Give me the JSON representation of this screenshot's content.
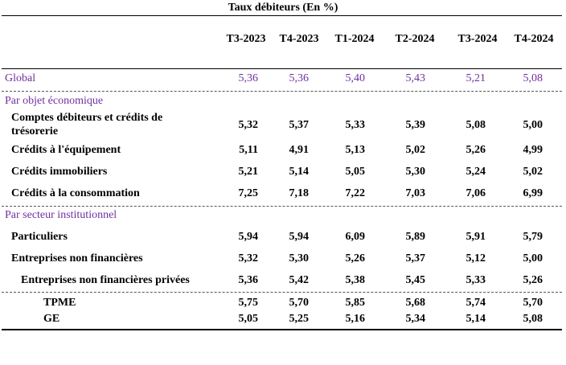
{
  "title": "Taux débiteurs (En %)",
  "columns": [
    "T3-2023",
    "T4-2023",
    "T1-2024",
    "T2-2024",
    "T3-2024",
    "T4-2024"
  ],
  "global": {
    "label": "Global",
    "values": [
      "5,36",
      "5,36",
      "5,40",
      "5,43",
      "5,21",
      "5,08"
    ]
  },
  "section_objet": {
    "label": "Par objet économique"
  },
  "objet_rows": [
    {
      "label_line1": "Comptes débiteurs et crédits de",
      "label_line2": "trésorerie",
      "values": [
        "5,32",
        "5,37",
        "5,33",
        "5,39",
        "5,08",
        "5,00"
      ]
    },
    {
      "label": "Crédits à l'équipement",
      "values": [
        "5,11",
        "4,91",
        "5,13",
        "5,02",
        "5,26",
        "4,99"
      ]
    },
    {
      "label": "Crédits immobiliers",
      "values": [
        "5,21",
        "5,14",
        "5,05",
        "5,30",
        "5,24",
        "5,02"
      ]
    },
    {
      "label": "Crédits à la consommation",
      "values": [
        "7,25",
        "7,18",
        "7,22",
        "7,03",
        "7,06",
        "6,99"
      ]
    }
  ],
  "section_secteur": {
    "label": "Par secteur institutionnel"
  },
  "secteur_rows": [
    {
      "label": "Particuliers",
      "values": [
        "5,94",
        "5,94",
        "6,09",
        "5,89",
        "5,91",
        "5,79"
      ]
    },
    {
      "label": "Entreprises non financières",
      "values": [
        "5,32",
        "5,30",
        "5,26",
        "5,37",
        "5,12",
        "5,00"
      ]
    },
    {
      "label": "Entreprises non financières privées",
      "values": [
        "5,36",
        "5,42",
        "5,38",
        "5,45",
        "5,33",
        "5,26"
      ]
    },
    {
      "label": "TPME",
      "values": [
        "5,75",
        "5,70",
        "5,85",
        "5,68",
        "5,74",
        "5,70"
      ]
    },
    {
      "label": "GE",
      "values": [
        "5,05",
        "5,25",
        "5,16",
        "5,34",
        "5,14",
        "5,08"
      ]
    }
  ]
}
